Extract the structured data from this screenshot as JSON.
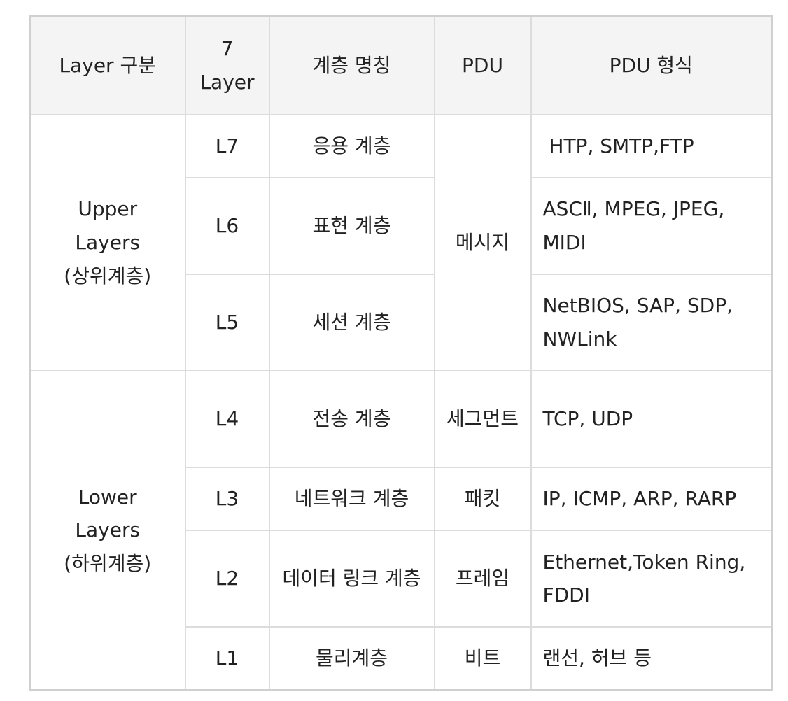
{
  "table": {
    "headers": {
      "layer_group": "Layer 구분",
      "seven_layer_line1": "7",
      "seven_layer_line2": "Layer",
      "layer_name": "계층 명칭",
      "pdu": "PDU",
      "pdu_format": "PDU 형식"
    },
    "groups": {
      "upper_line1": "Upper",
      "upper_line2": "Layers",
      "upper_line3": "(상위계층)",
      "lower_line1": "Lower",
      "lower_line2": "Layers",
      "lower_line3": "(하위계층)"
    },
    "rows": [
      {
        "layer": "L7",
        "name": "응용 계층",
        "pdu": "메시지",
        "format": " HTP, SMTP,FTP"
      },
      {
        "layer": "L6",
        "name": "표현 계층",
        "pdu": "메시지",
        "format": "ASCⅡ, MPEG, JPEG, MIDI"
      },
      {
        "layer": "L5",
        "name": "세션 계층",
        "pdu": "메시지",
        "format": "NetBIOS, SAP, SDP, NWLink"
      },
      {
        "layer": "L4",
        "name": "전송 계층",
        "pdu": "세그먼트",
        "format": "TCP, UDP"
      },
      {
        "layer": "L3",
        "name": "네트워크 계층",
        "pdu": "패킷",
        "format": "IP, ICMP, ARP, RARP"
      },
      {
        "layer": "L2",
        "name": "데이터 링크 계층",
        "pdu": "프레임",
        "format": "Ethernet,Token Ring, FDDI"
      },
      {
        "layer": "L1",
        "name": "물리계층",
        "pdu": "비트",
        "format": "랜선, 허브 등"
      }
    ]
  }
}
